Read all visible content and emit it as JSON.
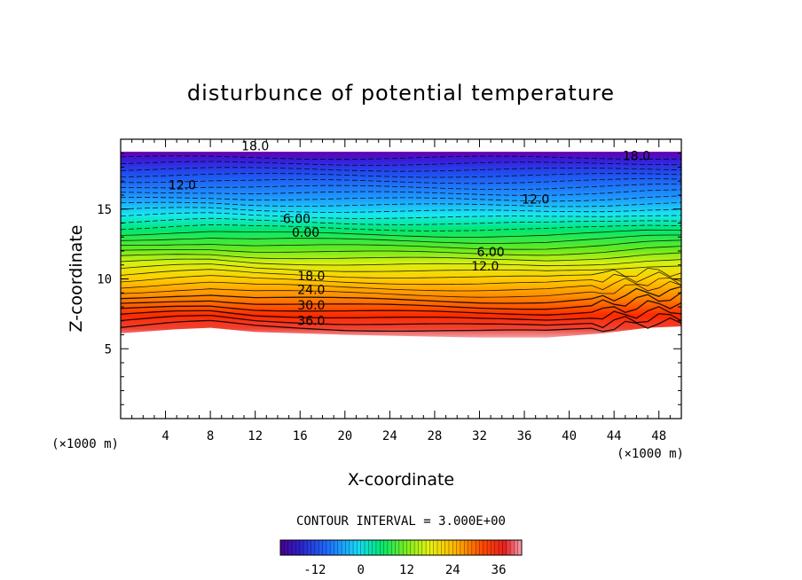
{
  "chart_data": {
    "type": "heatmap",
    "title": "disturbunce of potential temperature",
    "xlabel": "X-coordinate",
    "ylabel": "Z-coordinate",
    "x_unit": "(×1000 m)",
    "y_unit": "(×1000 m)",
    "xlim": [
      0,
      50
    ],
    "ylim": [
      0,
      20
    ],
    "x_ticks": [
      "4",
      "8",
      "12",
      "16",
      "20",
      "24",
      "28",
      "32",
      "36",
      "40",
      "44",
      "48"
    ],
    "y_ticks": [
      "5",
      "10",
      "15"
    ],
    "contour_interval_label": "CONTOUR INTERVAL = 3.000E+00",
    "contour_labels": [
      {
        "text": "18.0",
        "x": 12.0,
        "z": 19.4
      },
      {
        "text": "18.0",
        "x": 46.0,
        "z": 18.7
      },
      {
        "text": "12.0",
        "x": 5.5,
        "z": 16.6
      },
      {
        "text": "12.0",
        "x": 37.0,
        "z": 15.6
      },
      {
        "text": "6.00",
        "x": 15.7,
        "z": 14.2
      },
      {
        "text": "0.00",
        "x": 16.5,
        "z": 13.2
      },
      {
        "text": "6.00",
        "x": 33.0,
        "z": 11.8
      },
      {
        "text": "12.0",
        "x": 32.5,
        "z": 10.8
      },
      {
        "text": "18.0",
        "x": 17.0,
        "z": 10.1
      },
      {
        "text": "24.0",
        "x": 17.0,
        "z": 9.1
      },
      {
        "text": "30.0",
        "x": 17.0,
        "z": 8.0
      },
      {
        "text": "36.0",
        "x": 17.0,
        "z": 6.9
      }
    ],
    "colorbar": {
      "ticks": [
        "-12",
        "0",
        "12",
        "24",
        "36"
      ],
      "min": -21,
      "max": 42
    },
    "field_top_z": 19.1,
    "field_bottom_z_profile": [
      [
        0,
        6.1
      ],
      [
        5,
        6.4
      ],
      [
        8,
        6.5
      ],
      [
        12,
        6.2
      ],
      [
        20,
        6.0
      ],
      [
        26,
        5.9
      ],
      [
        32,
        5.8
      ],
      [
        38,
        5.8
      ],
      [
        43,
        6.1
      ],
      [
        47,
        6.5
      ],
      [
        50,
        6.6
      ]
    ]
  }
}
